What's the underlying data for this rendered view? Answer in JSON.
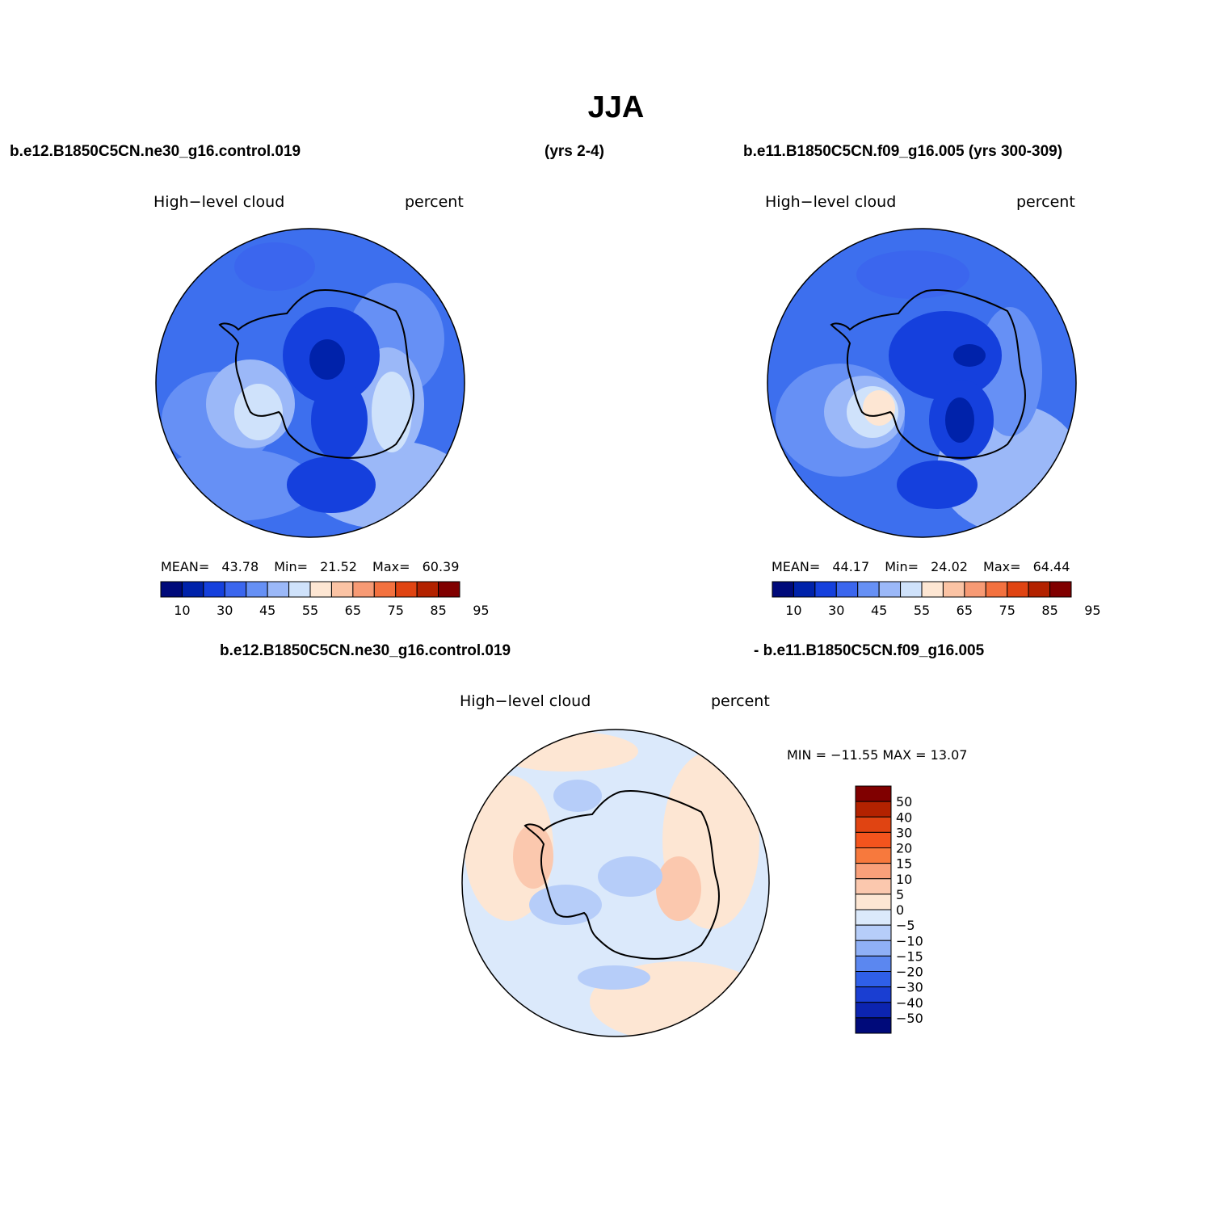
{
  "title": "JJA",
  "case1": {
    "name": "b.e12.B1850C5CN.ne30_g16.control.019",
    "years": "(yrs 2-4)"
  },
  "case2": {
    "name": "b.e11.B1850C5CN.f09_g16.005 (yrs 300-309)"
  },
  "diff": {
    "line1": "b.e12.B1850C5CN.ne30_g16.control.019",
    "line2": "- b.e11.B1850C5CN.f09_g16.005"
  },
  "panels": [
    {
      "var_label": "High−level cloud",
      "units": "percent",
      "stats": {
        "mean_label": "MEAN=",
        "mean": "43.78",
        "min_label": "Min=",
        "min": "21.52",
        "max_label": "Max=",
        "max": "60.39"
      }
    },
    {
      "var_label": "High−level cloud",
      "units": "percent",
      "stats": {
        "mean_label": "MEAN=",
        "mean": "44.17",
        "min_label": "Min=",
        "min": "24.02",
        "max_label": "Max=",
        "max": "64.44"
      }
    },
    {
      "var_label": "High−level cloud",
      "units": "percent",
      "minmax": "MIN = −11.55 MAX =  13.07"
    }
  ],
  "abs_colorbar": {
    "colors": [
      "#000a7a",
      "#0022aa",
      "#1540dd",
      "#3b66ee",
      "#6690f5",
      "#9bb8f8",
      "#cfe2fb",
      "#fde6d3",
      "#fbc3a4",
      "#f79a74",
      "#f3713f",
      "#e04412",
      "#b32200",
      "#800000"
    ],
    "labels": [
      "10",
      "30",
      "45",
      "55",
      "65",
      "75",
      "85",
      "95"
    ]
  },
  "diff_colorbar": {
    "colors_top_to_bottom": [
      "#800000",
      "#b32200",
      "#e04412",
      "#f3541d",
      "#f7793d",
      "#f9a07a",
      "#fbc8ae",
      "#fde6d3",
      "#dbe9fb",
      "#b6cdf9",
      "#8fb0f6",
      "#5b87f0",
      "#2f5fe8",
      "#1a3ed2",
      "#0c24b0",
      "#000a7a"
    ],
    "labels": [
      "50",
      "40",
      "30",
      "20",
      "15",
      "10",
      "5",
      "0",
      "−5",
      "−10",
      "−15",
      "−20",
      "−30",
      "−40",
      "−50"
    ]
  },
  "colors": {
    "ocean_blue": "#3d6fee",
    "land_outline": "#000000"
  }
}
